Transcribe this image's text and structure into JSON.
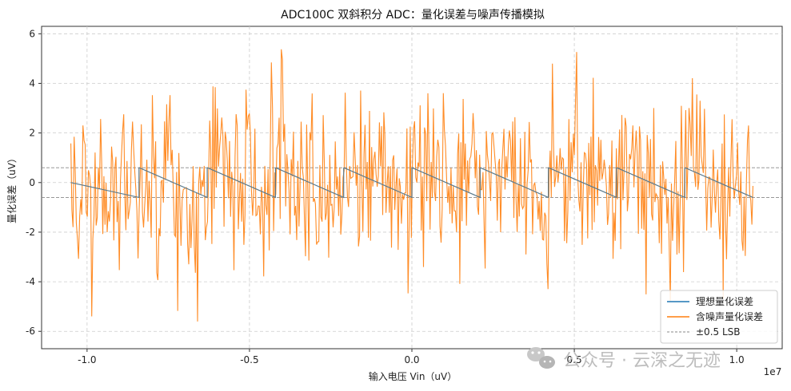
{
  "chart_data": {
    "type": "line",
    "title": "ADC100C 双斜积分 ADC：量化误差与噪声传播模拟",
    "xlabel": "输入电压 Vin（uV）",
    "ylabel": "量化误差（uV）",
    "x_offset_label": "1e7",
    "xlim": [
      -11400000,
      11400000
    ],
    "ylim": [
      -6.7,
      6.3
    ],
    "grid": true,
    "legend_position": "lower-right",
    "x_ticks": [
      {
        "value": -10000000,
        "label": "-1.0"
      },
      {
        "value": -5000000,
        "label": "-0.5"
      },
      {
        "value": 0,
        "label": "0.0"
      },
      {
        "value": 5000000,
        "label": "0.5"
      },
      {
        "value": 10000000,
        "label": "1.0"
      }
    ],
    "y_ticks": [
      {
        "value": -6,
        "label": "-6"
      },
      {
        "value": -4,
        "label": "-4"
      },
      {
        "value": -2,
        "label": "-2"
      },
      {
        "value": 0,
        "label": "0"
      },
      {
        "value": 2,
        "label": "2"
      },
      {
        "value": 4,
        "label": "4"
      },
      {
        "value": 6,
        "label": "6"
      }
    ],
    "series": [
      {
        "name": "理想量化误差",
        "color": "#1f77b4",
        "style": "sawtooth",
        "x_range": [
          -10500000,
          10500000
        ],
        "period": 2100000,
        "y_start": 0.0,
        "amplitude": 0.6
      },
      {
        "name": "含噪声量化误差",
        "color": "#ff7f0e",
        "style": "noisy",
        "x_range": [
          -10500000,
          10500000
        ],
        "n_points": 620,
        "noise_std": 1.7,
        "spike_clip": [
          -6.1,
          5.6
        ]
      }
    ],
    "reference_lines": [
      {
        "name": "±0.5 LSB",
        "values": [
          0.6,
          -0.6
        ],
        "color": "#888888",
        "dashed": true
      }
    ]
  },
  "watermark": {
    "icon": "wechat-icon",
    "text": "公众号 · 云深之无迹"
  }
}
